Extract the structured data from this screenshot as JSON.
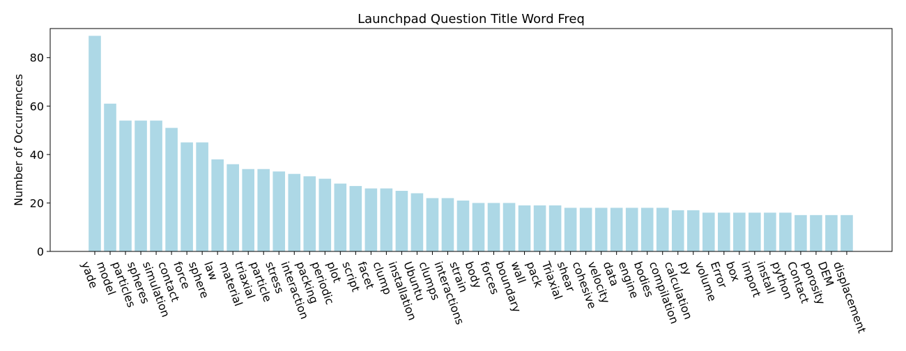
{
  "chart_data": {
    "type": "bar",
    "title": "Launchpad Question Title Word Freq",
    "xlabel": "",
    "ylabel": "Number of Occurrences",
    "ylim": [
      0,
      92
    ],
    "yticks": [
      0,
      20,
      40,
      60,
      80
    ],
    "grid": false,
    "bar_color": "#add8e6",
    "categories": [
      "yade",
      "model",
      "particles",
      "spheres",
      "simulation",
      "contact",
      "force",
      "sphere",
      "law",
      "material",
      "triaxial",
      "particle",
      "stress",
      "interaction",
      "packing",
      "periodic",
      "plot",
      "script",
      "facet",
      "clump",
      "installation",
      "Ubuntu",
      "clumps",
      "interactions",
      "strain",
      "body",
      "forces",
      "boundary",
      "wall",
      "pack",
      "Triaxial",
      "shear",
      "cohesive",
      "velocity",
      "data",
      "engine",
      "bodies",
      "compilation",
      "calculation",
      "py",
      "volume",
      "Error",
      "box",
      "import",
      "install",
      "python",
      "Contact",
      "porosity",
      "DEM",
      "displacement"
    ],
    "values": [
      89,
      61,
      54,
      54,
      54,
      51,
      45,
      45,
      38,
      36,
      34,
      34,
      33,
      32,
      31,
      30,
      28,
      27,
      26,
      26,
      25,
      24,
      22,
      22,
      21,
      20,
      20,
      20,
      19,
      19,
      19,
      18,
      18,
      18,
      18,
      18,
      18,
      18,
      17,
      17,
      16,
      16,
      16,
      16,
      16,
      16,
      15,
      15,
      15,
      15
    ]
  }
}
